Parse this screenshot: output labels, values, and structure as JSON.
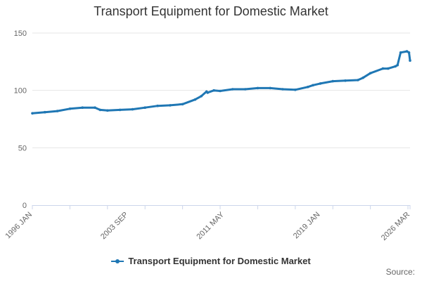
{
  "chart_data": {
    "type": "line",
    "title": "Transport Equipment for Domestic Market",
    "xlabel": "",
    "ylabel": "",
    "ylim": [
      0,
      150
    ],
    "yticks": [
      0,
      50,
      100,
      150
    ],
    "xlim": [
      "1996-01",
      "2026-03"
    ],
    "xtick_labels": [
      "1996 JAN",
      "2003 SEP",
      "2011 MAY",
      "2019 JAN",
      "2026 MAR"
    ],
    "grid": true,
    "legend_position": "bottom",
    "series": [
      {
        "name": "Transport Equipment for Domestic Market",
        "color": "#1f77b4",
        "x": [
          "1996-01",
          "1997-01",
          "1998-01",
          "1999-01",
          "2000-01",
          "2001-01",
          "2001-06",
          "2002-01",
          "2003-01",
          "2004-01",
          "2005-01",
          "2006-01",
          "2007-01",
          "2008-01",
          "2009-01",
          "2009-07",
          "2009-12",
          "2010-01",
          "2010-07",
          "2011-01",
          "2012-01",
          "2013-01",
          "2014-01",
          "2015-01",
          "2016-01",
          "2017-01",
          "2018-01",
          "2018-06",
          "2019-01",
          "2020-01",
          "2021-01",
          "2022-01",
          "2022-06",
          "2023-01",
          "2024-01",
          "2024-06",
          "2025-01",
          "2025-03",
          "2025-06",
          "2025-12",
          "2026-02",
          "2026-03"
        ],
        "values": [
          80,
          81,
          82,
          84,
          85,
          85,
          83,
          82.5,
          83,
          83.5,
          85,
          86.5,
          87,
          88,
          92,
          95,
          99,
          98,
          100,
          99.5,
          101,
          101,
          102,
          102,
          101,
          100.5,
          103,
          104.5,
          106,
          108,
          108.5,
          109,
          111,
          115,
          119,
          119,
          121,
          122,
          133,
          134,
          133,
          126
        ]
      }
    ]
  },
  "source_label": "Source:"
}
